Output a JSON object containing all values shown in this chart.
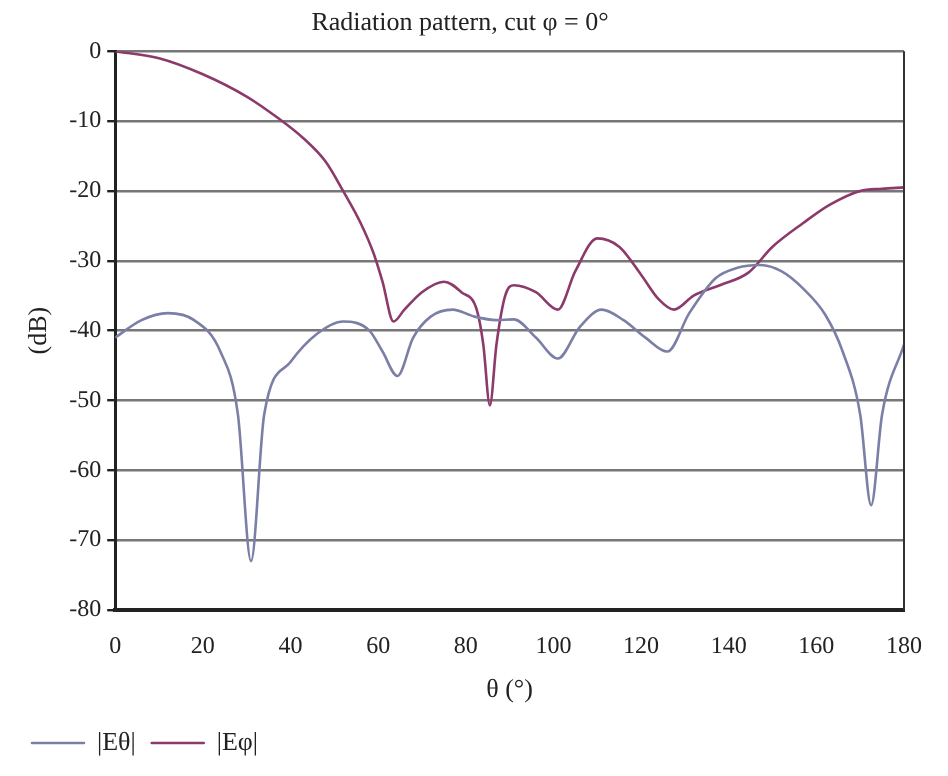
{
  "chart_data": {
    "type": "line",
    "title": "Radiation pattern, cut φ = 0°",
    "xlabel": "θ (°)",
    "ylabel": "(dB)",
    "xlim": [
      0,
      180
    ],
    "xticks": [
      0,
      20,
      40,
      60,
      80,
      100,
      120,
      140,
      160,
      180
    ],
    "ylim": [
      -80,
      0
    ],
    "yticks": [
      -80,
      -70,
      -60,
      -50,
      -40,
      -30,
      -20,
      -10,
      0
    ],
    "grid": "y",
    "legend": "bottom left",
    "marker": "none",
    "line_style": "solid",
    "series": [
      {
        "name": "|Eθ|",
        "color": "#7b7fa6",
        "x": [
          0,
          6,
          12,
          18,
          24,
          28,
          31,
          34,
          40,
          46,
          52,
          58,
          61,
          64.4,
          68,
          72,
          77,
          82,
          87,
          91,
          96,
          101,
          106,
          111,
          116,
          121,
          126,
          131,
          137,
          142,
          147,
          152,
          157,
          162,
          166,
          170,
          172.5,
          175,
          180
        ],
        "values": [
          -41,
          -38.5,
          -37.5,
          -38.5,
          -43,
          -52,
          -73,
          -52,
          -44.5,
          -40.5,
          -38.7,
          -40,
          -43,
          -46.5,
          -41,
          -38,
          -37,
          -38,
          -38.5,
          -38.4,
          -41,
          -44,
          -39.5,
          -37,
          -38.5,
          -41,
          -43,
          -37.5,
          -32.5,
          -31,
          -30.6,
          -31.5,
          -34,
          -37.7,
          -43,
          -52,
          -65,
          -52,
          -42
        ]
      },
      {
        "name": "|Eφ|",
        "color": "#8b3a6b",
        "x": [
          0,
          10,
          20,
          30,
          37,
          43,
          48,
          52,
          56,
          59,
          61,
          63.5,
          66,
          70,
          75,
          79,
          82.5,
          84,
          85.5,
          87,
          89,
          91,
          96,
          101,
          105,
          110,
          115,
          120,
          124,
          127.5,
          132,
          138,
          144.5,
          150,
          157,
          163,
          170,
          175,
          180
        ],
        "values": [
          0,
          -1,
          -3.3,
          -6.5,
          -9.5,
          -12.5,
          -15.8,
          -20,
          -24.6,
          -29,
          -33,
          -38.7,
          -37,
          -34.5,
          -33,
          -34.5,
          -37,
          -42,
          -50.7,
          -42,
          -35,
          -33.5,
          -34.5,
          -37,
          -31.5,
          -26.8,
          -28,
          -32,
          -35.5,
          -37,
          -35,
          -33.5,
          -31.7,
          -28,
          -24.6,
          -22,
          -20,
          -19.7,
          -19.5
        ]
      }
    ]
  }
}
